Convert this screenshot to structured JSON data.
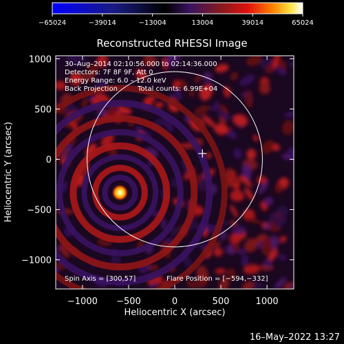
{
  "chart_data": {
    "type": "heatmap",
    "title": "Reconstructed RHESSI Image",
    "xlabel": "Heliocentric X (arcsec)",
    "ylabel": "Heliocentric Y (arcsec)",
    "xlim": [
      -1290,
      1290
    ],
    "ylim": [
      -1290,
      1030
    ],
    "xticks": [
      -1000,
      -500,
      0,
      500,
      1000
    ],
    "yticks": [
      -1000,
      -500,
      0,
      500,
      1000
    ],
    "xticklabels": [
      "−1000",
      "−500",
      "0",
      "500",
      "1000"
    ],
    "yticklabels": [
      "−1000",
      "−500",
      "0",
      "500",
      "1000"
    ],
    "colorbar": {
      "min": -65024,
      "max": 65024,
      "ticks": [
        -65024,
        -39014,
        -13004,
        13004,
        39014,
        65024
      ],
      "ticklabels": [
        "−65024",
        "−39014",
        "−13004",
        "13004",
        "39014",
        "65024"
      ],
      "colormap": "blue-black-purple-red-orange-yellow-white"
    },
    "annotations": {
      "time_range": "30–Aug–2014 02:10:56.000 to 02:14:36.000",
      "detectors": "Detectors: 7F 8F 9F, Att 0",
      "energy": "Energy Range: 6.0 – 12.0 keV",
      "method": "Back Projection",
      "counts": "Total counts: 6.99E+04",
      "spin_axis": "Spin Axis = [300,57]",
      "flare_position": "Flare Position = [−594,−332]"
    },
    "solar_limb_radius": 950,
    "source": {
      "x": -594,
      "y": -332
    },
    "spin_axis_marker": {
      "x": 300,
      "y": 57
    }
  },
  "footer": {
    "date": "16–May–2022 13:27"
  },
  "colors": {
    "background": "#000000",
    "foreground": "#ffffff",
    "colormap_stops": [
      "#0000ff",
      "#1a1a70",
      "#000000",
      "#3a1360",
      "#7a1a1a",
      "#e01010",
      "#ff8000",
      "#ffe040",
      "#ffffff"
    ]
  }
}
